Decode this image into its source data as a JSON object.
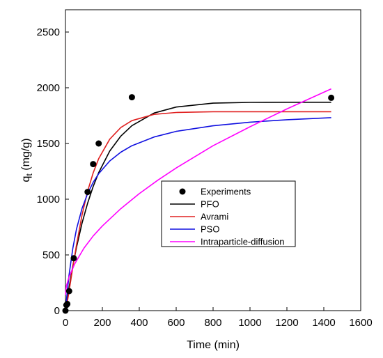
{
  "chart_data": {
    "type": "line",
    "xlabel": "Time (min)",
    "ylabel": {
      "main": "q",
      "sub": "t",
      "rest": " (mg/g)"
    },
    "xlim": [
      0,
      1600
    ],
    "ylim": [
      0,
      2700
    ],
    "xticks": [
      0,
      200,
      400,
      600,
      800,
      1000,
      1200,
      1400,
      1600
    ],
    "yticks": [
      0,
      500,
      1000,
      1500,
      2000,
      2500
    ],
    "grid": false,
    "legend_position": "center-right",
    "series": [
      {
        "name": "Experiments",
        "kind": "scatter",
        "color": "#000000",
        "x": [
          0,
          5,
          10,
          20,
          45,
          120,
          150,
          180,
          360,
          1440
        ],
        "y": [
          0,
          50,
          60,
          175,
          470,
          1065,
          1315,
          1500,
          1915,
          1910
        ]
      },
      {
        "name": "PFO",
        "kind": "line",
        "color": "#000000",
        "x": [
          0,
          10,
          20,
          40,
          60,
          90,
          120,
          150,
          180,
          240,
          300,
          360,
          480,
          600,
          800,
          1000,
          1200,
          1440
        ],
        "y": [
          0,
          109,
          213,
          403,
          569,
          785,
          964,
          1114,
          1238,
          1432,
          1566,
          1660,
          1773,
          1827,
          1862,
          1869,
          1870,
          1870
        ]
      },
      {
        "name": "Avrami",
        "kind": "line",
        "color": "#e02020",
        "x": [
          0,
          10,
          20,
          40,
          60,
          90,
          120,
          150,
          180,
          240,
          300,
          360,
          480,
          600,
          800,
          1000,
          1200,
          1440
        ],
        "y": [
          0,
          79,
          179,
          390,
          592,
          858,
          1071,
          1236,
          1364,
          1539,
          1643,
          1705,
          1761,
          1778,
          1785,
          1785,
          1785,
          1785
        ]
      },
      {
        "name": "PSO",
        "kind": "line",
        "color": "#1010e0",
        "x": [
          0,
          10,
          20,
          40,
          60,
          90,
          120,
          150,
          180,
          240,
          300,
          360,
          480,
          600,
          800,
          1000,
          1200,
          1440
        ],
        "y": [
          0,
          178,
          326,
          560,
          733,
          917,
          1050,
          1151,
          1229,
          1343,
          1422,
          1480,
          1558,
          1609,
          1659,
          1691,
          1713,
          1732
        ]
      },
      {
        "name": "Intraparticle-diffusion",
        "kind": "line",
        "color": "#ff00ff",
        "x": [
          0,
          5,
          20,
          50,
          100,
          150,
          200,
          300,
          400,
          500,
          600,
          800,
          1000,
          1200,
          1440
        ],
        "y": [
          140,
          222,
          305,
          420,
          560,
          670,
          760,
          915,
          1050,
          1170,
          1280,
          1480,
          1650,
          1810,
          1990
        ]
      }
    ]
  }
}
